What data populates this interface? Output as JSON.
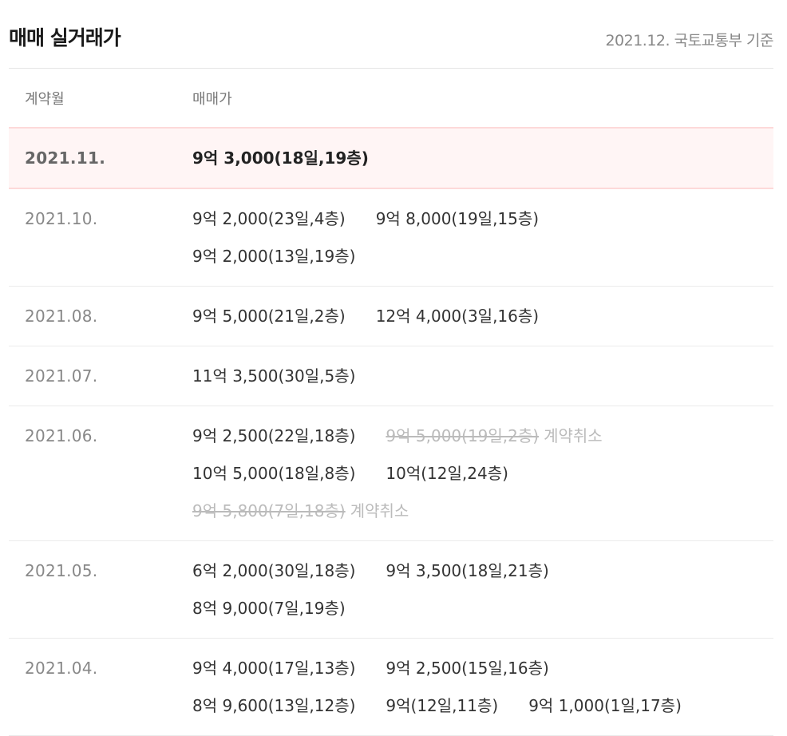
{
  "header": {
    "title": "매매 실거래가",
    "source": "2021.12. 국토교통부 기준"
  },
  "columns": {
    "month": "계약월",
    "price": "매매가"
  },
  "rows": [
    {
      "month": "2021.11.",
      "highlight": true,
      "lines": [
        [
          {
            "text": "9억 3,000(18일,19층)"
          }
        ]
      ]
    },
    {
      "month": "2021.10.",
      "lines": [
        [
          {
            "text": "9억 2,000(23일,4층)"
          },
          {
            "text": "9억 8,000(19일,15층)"
          }
        ],
        [
          {
            "text": "9억 2,000(13일,19층)"
          }
        ]
      ]
    },
    {
      "month": "2021.08.",
      "lines": [
        [
          {
            "text": "9억 5,000(21일,2층)"
          },
          {
            "text": "12억 4,000(3일,16층)"
          }
        ]
      ]
    },
    {
      "month": "2021.07.",
      "lines": [
        [
          {
            "text": "11억 3,500(30일,5층)"
          }
        ]
      ]
    },
    {
      "month": "2021.06.",
      "lines": [
        [
          {
            "text": "9억 2,500(22일,18층)"
          },
          {
            "text": "9억 5,000(19일,2층)",
            "cancelled": true,
            "cancel_label": "계약취소"
          }
        ],
        [
          {
            "text": "10억 5,000(18일,8층)"
          },
          {
            "text": "10억(12일,24층)"
          }
        ],
        [
          {
            "text": "9억 5,800(7일,18층)",
            "cancelled": true,
            "cancel_label": "계약취소"
          }
        ]
      ]
    },
    {
      "month": "2021.05.",
      "lines": [
        [
          {
            "text": "6억 2,000(30일,18층)"
          },
          {
            "text": "9억 3,500(18일,21층)"
          }
        ],
        [
          {
            "text": "8억 9,000(7일,19층)"
          }
        ]
      ]
    },
    {
      "month": "2021.04.",
      "lines": [
        [
          {
            "text": "9억 4,000(17일,13층)"
          },
          {
            "text": "9억 2,500(15일,16층)"
          }
        ],
        [
          {
            "text": "8억 9,600(13일,12층)"
          },
          {
            "text": "9억(12일,11층)"
          },
          {
            "text": "9억 1,000(1일,17층)"
          }
        ]
      ]
    }
  ]
}
